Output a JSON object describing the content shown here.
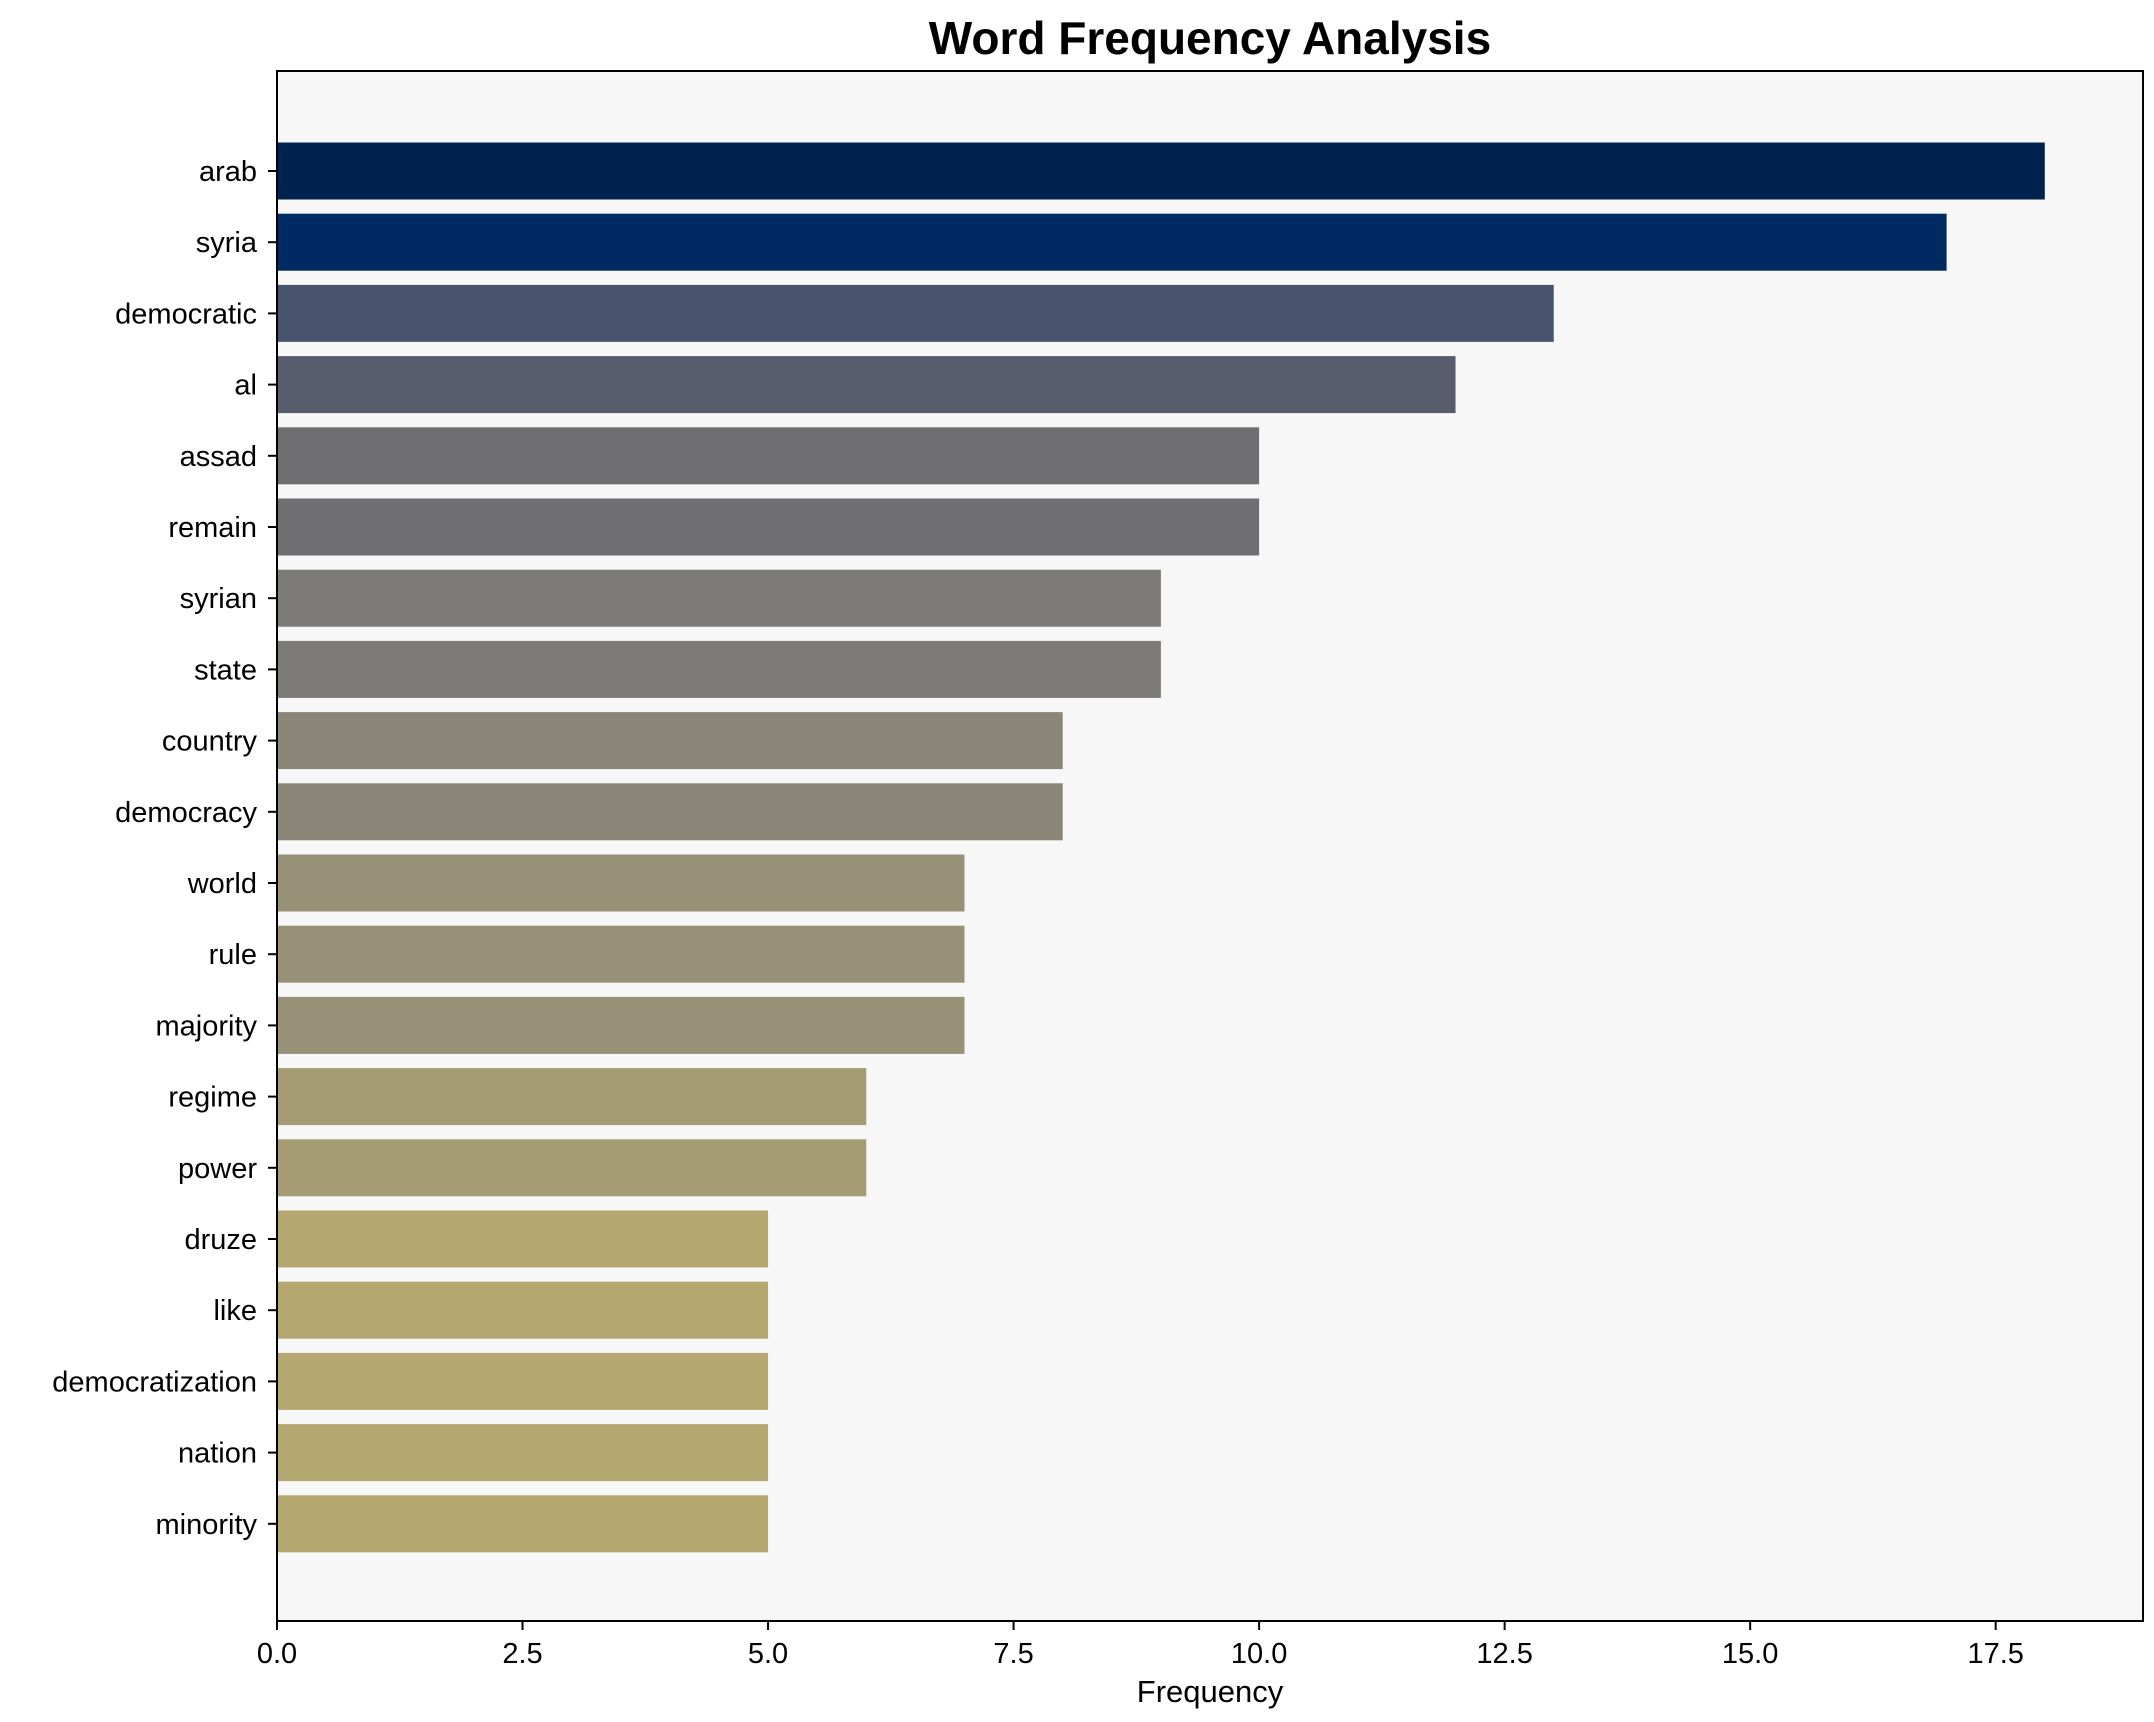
{
  "chart_data": {
    "type": "bar",
    "orientation": "horizontal",
    "title": "Word Frequency Analysis",
    "xlabel": "Frequency",
    "ylabel": "",
    "xlim": [
      0,
      19
    ],
    "xticks": [
      "0.0",
      "2.5",
      "5.0",
      "7.5",
      "10.0",
      "12.5",
      "15.0",
      "17.5"
    ],
    "xtick_values": [
      0,
      2.5,
      5,
      7.5,
      10,
      12.5,
      15,
      17.5
    ],
    "grid": false,
    "legend": "none",
    "categories": [
      "arab",
      "syria",
      "democratic",
      "al",
      "assad",
      "remain",
      "syrian",
      "state",
      "country",
      "democracy",
      "world",
      "rule",
      "majority",
      "regime",
      "power",
      "druze",
      "like",
      "democratization",
      "nation",
      "minority"
    ],
    "values": [
      18,
      17,
      13,
      12,
      10,
      10,
      9,
      9,
      8,
      8,
      7,
      7,
      7,
      6,
      6,
      5,
      5,
      5,
      5,
      5
    ],
    "colors": [
      "#00224e",
      "#002a62",
      "#48536e",
      "#575d6d",
      "#6f6f71",
      "#6f6f71",
      "#7c7b78",
      "#7c7b78",
      "#8a8779",
      "#8a8779",
      "#979277",
      "#979277",
      "#979277",
      "#a59c73",
      "#a59c73",
      "#b4a770",
      "#b4a770",
      "#b4a770",
      "#b4a770",
      "#b4a770"
    ],
    "plot_background": "#f7f7f7"
  }
}
